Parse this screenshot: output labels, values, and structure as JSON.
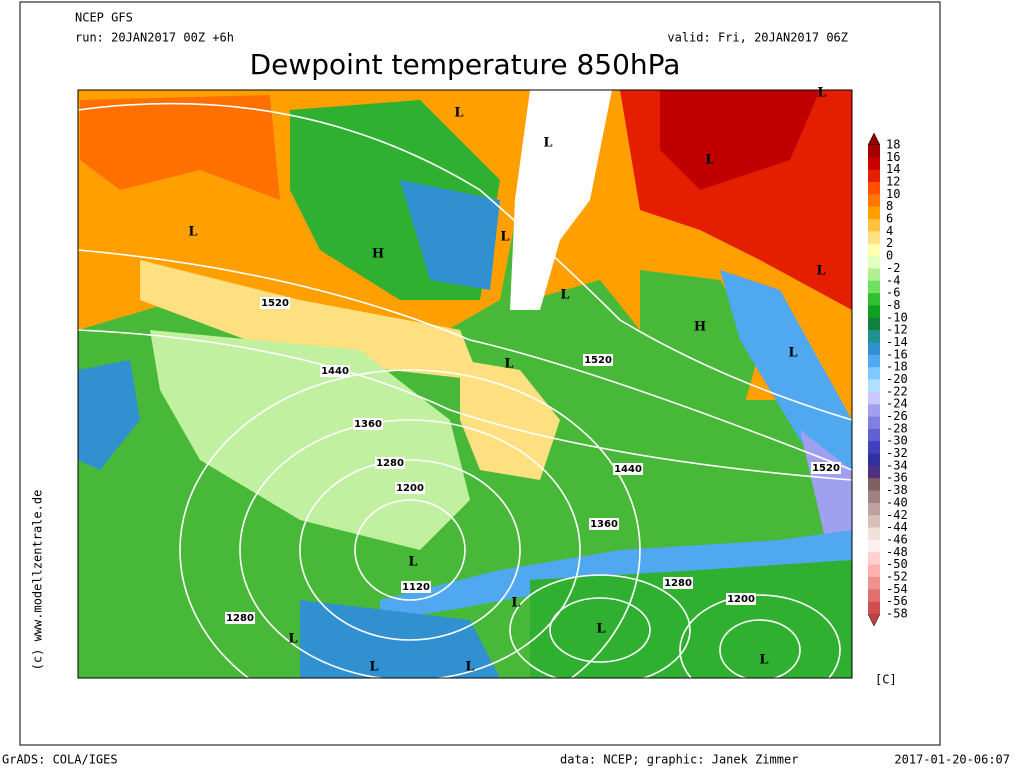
{
  "header": {
    "model": "NCEP GFS",
    "run": "run: 20JAN2017 00Z +6h",
    "valid": "valid: Fri, 20JAN2017 06Z",
    "title": "Dewpoint temperature 850hPa"
  },
  "colorbar": {
    "unit": "[C]",
    "labels": [
      "18",
      "16",
      "14",
      "12",
      "10",
      "8",
      "6",
      "4",
      "2",
      "0",
      "-2",
      "-4",
      "-6",
      "-8",
      "-10",
      "-12",
      "-14",
      "-16",
      "-18",
      "-20",
      "-22",
      "-24",
      "-26",
      "-28",
      "-30",
      "-32",
      "-34",
      "-36",
      "-38",
      "-40",
      "-42",
      "-44",
      "-46",
      "-48",
      "-50",
      "-52",
      "-54",
      "-56",
      "-58"
    ]
  },
  "contour_labels": [
    "1520",
    "1440",
    "1360",
    "1280",
    "1200",
    "1120",
    "1280",
    "1520",
    "1440",
    "1360",
    "1280",
    "1200",
    "1520"
  ],
  "pressure_centers": [
    "L",
    "L",
    "L",
    "L",
    "L",
    "H",
    "L",
    "L",
    "L",
    "H",
    "L",
    "L",
    "L",
    "L",
    "L",
    "L",
    "L",
    "L",
    "L"
  ],
  "footer": {
    "copyright": "(c) www.modellzentrale.de",
    "software": "GrADS: COLA/IGES",
    "credit": "data: NCEP; graphic: Janek Zimmer",
    "timestamp": "2017-01-20-06:07"
  }
}
